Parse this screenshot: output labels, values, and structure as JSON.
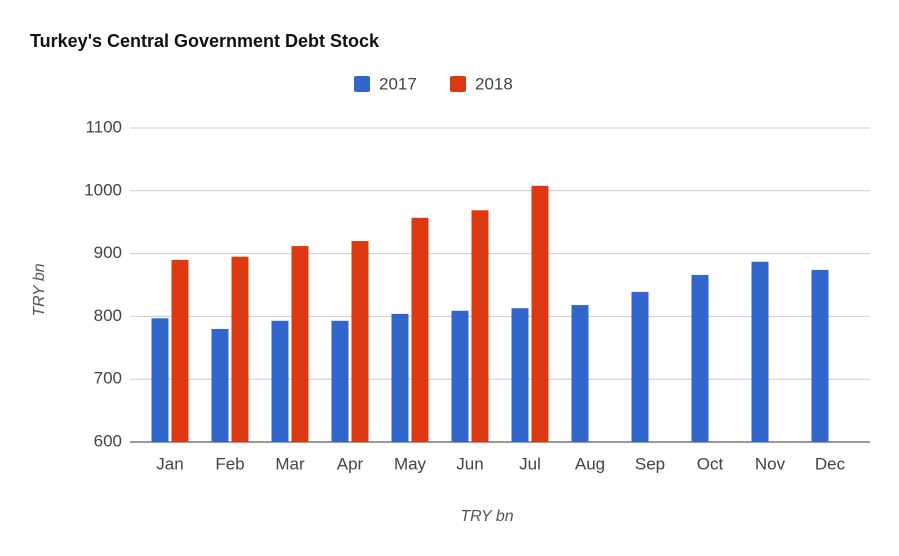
{
  "chart_data": {
    "type": "bar",
    "title": "Turkey's Central Government Debt Stock",
    "x_label": "TRY bn",
    "y_label": "TRY bn",
    "categories": [
      "Jan",
      "Feb",
      "Mar",
      "Apr",
      "May",
      "Jun",
      "Jul",
      "Aug",
      "Sep",
      "Oct",
      "Nov",
      "Dec"
    ],
    "series": [
      {
        "name": "2017",
        "color": "#3366cc",
        "values": [
          797,
          780,
          793,
          793,
          804,
          809,
          813,
          818,
          839,
          866,
          887,
          874
        ]
      },
      {
        "name": "2018",
        "color": "#dc3912",
        "values": [
          890,
          895,
          912,
          920,
          957,
          969,
          1008,
          null,
          null,
          null,
          null,
          null
        ]
      }
    ],
    "ylim": [
      600,
      1100
    ],
    "yticks": [
      600,
      700,
      800,
      900,
      1000,
      1100
    ],
    "grid": true,
    "legend": "top"
  }
}
